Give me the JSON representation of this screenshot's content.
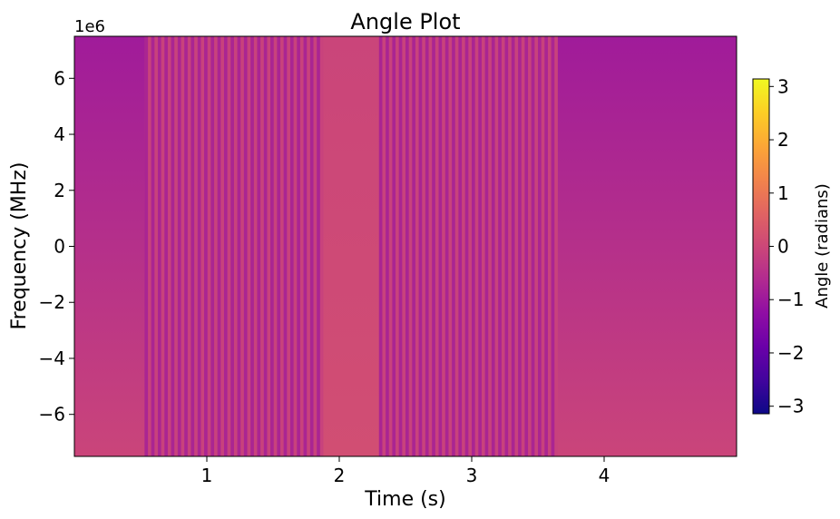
{
  "chart_data": {
    "type": "heatmap",
    "title": "Angle Plot",
    "xlabel": "Time (s)",
    "ylabel": "Frequency (MHz)",
    "y_offset_label": "1e6",
    "xlim": [
      0.0,
      5.0
    ],
    "ylim": [
      7500000,
      -7500000
    ],
    "x_ticks": [
      1,
      2,
      3,
      4
    ],
    "x_tick_labels": [
      "1",
      "2",
      "3",
      "4"
    ],
    "y_ticks": [
      -6000000,
      -4000000,
      -2000000,
      0,
      2000000,
      4000000,
      6000000
    ],
    "y_tick_labels": [
      "−6",
      "−4",
      "−2",
      "0",
      "2",
      "4",
      "6"
    ],
    "colorbar": {
      "label": "Angle (radians)",
      "colormap": "plasma",
      "range": [
        -3.14159,
        3.14159
      ],
      "ticks": [
        3,
        2,
        1,
        0,
        -1,
        -2,
        -3
      ],
      "tick_labels": [
        "3",
        "2",
        "1",
        "0",
        "−1",
        "−2",
        "−3"
      ]
    },
    "segments": [
      {
        "t_start": 0.0,
        "t_end": 0.53,
        "pattern": "smooth",
        "angle_top": -0.95,
        "angle_bottom": -0.05
      },
      {
        "t_start": 0.53,
        "t_end": 1.88,
        "pattern": "stripes",
        "period_s": 0.05,
        "angle_low": -0.85,
        "angle_high": -0.1
      },
      {
        "t_start": 1.88,
        "t_end": 2.3,
        "pattern": "smooth",
        "angle_top": -0.05,
        "angle_bottom": 0.15
      },
      {
        "t_start": 2.3,
        "t_end": 3.65,
        "pattern": "stripes",
        "period_s": 0.05,
        "angle_low": -0.85,
        "angle_high": -0.1
      },
      {
        "t_start": 3.65,
        "t_end": 5.0,
        "pattern": "smooth",
        "angle_top": -0.95,
        "angle_bottom": -0.05
      }
    ]
  }
}
